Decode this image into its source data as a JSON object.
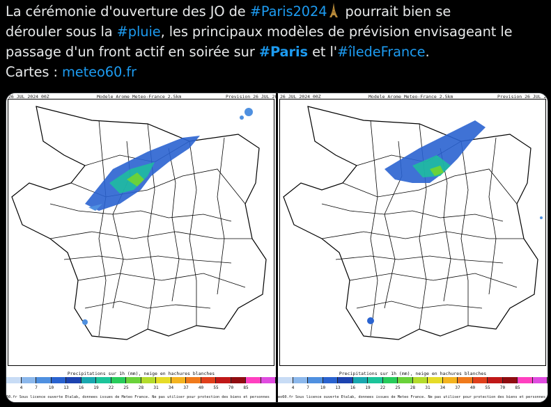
{
  "tweet": {
    "line1_a": "La cérémonie d'ouverture des JO de ",
    "hashtag_paris2024": "#Paris2024",
    "line1_b": " pourrait bien se",
    "line2_a": "dérouler sous la ",
    "hashtag_pluie": "#pluie",
    "line2_b": ", les principaux modèles de prévision envisageant le",
    "line3_a": "passage d'un front actif en soirée sur ",
    "hashtag_paris": "#Paris",
    "line3_b": " et l'",
    "hashtag_iledefrance": "#îledeFrance",
    "line3_c": ".",
    "cartes_label": "Cartes : ",
    "cartes_link": "meteo60.fr",
    "emoji": "eiffel-tower-icon"
  },
  "maps": [
    {
      "header_left": "26 JUL 2024 00Z",
      "header_center": "Modele Arome Meteo-France 2.5km",
      "header_right": "Prevision 26 JUL 20",
      "colorbar_title": "Precipitations sur 1h (mm), neige en hachures blanches",
      "footer": "60.fr Sous licence ouverte Etalab, donnees issues de Meteo France. Ne pas utiliser pour protection des biens et personnes"
    },
    {
      "header_left": "26 JUL 2024 00Z",
      "header_center": "Modele Arome Meteo-France 2.5km",
      "header_right": "Prevision 26 JUL 20",
      "colorbar_title": "Precipitations sur 1h (mm), neige en hachures blanches",
      "footer": "eo60.fr Sous licence ouverte Etalab, donnees issues de Meteo France. Ne pas utiliser pour protection des biens et personnes"
    }
  ],
  "colorbar": {
    "ticks": [
      "4",
      "7",
      "10",
      "13",
      "16",
      "19",
      "22",
      "25",
      "28",
      "31",
      "34",
      "37",
      "40",
      "55",
      "70",
      "85"
    ],
    "colors": [
      "#c8dcf5",
      "#8cb8ec",
      "#4f90e0",
      "#2a63d0",
      "#1c43b0",
      "#1aa8b0",
      "#1cc49a",
      "#28cc5c",
      "#6ad23a",
      "#b4dc2c",
      "#e6dc28",
      "#f4b420",
      "#f07a1c",
      "#e0401c",
      "#c01818",
      "#900c10",
      "#ff40c0",
      "#e04ce0"
    ]
  },
  "colors": {
    "background": "#000000",
    "text": "#e7e9ea",
    "link": "#1d9bf0"
  }
}
